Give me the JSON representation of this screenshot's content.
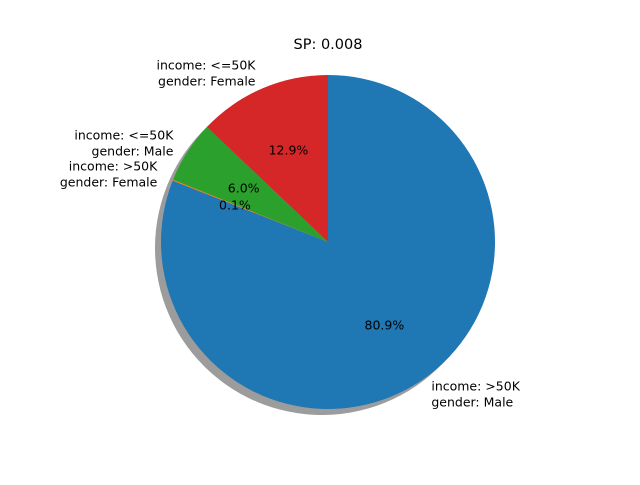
{
  "chart_data": {
    "type": "pie",
    "title": "SP: 0.008",
    "start_angle_deg": 90,
    "shadow": true,
    "slices": [
      {
        "label_lines": [
          "income: <=50K",
          "gender: Female"
        ],
        "value": 12.9,
        "pct_label": "12.9%",
        "color": "#d62728"
      },
      {
        "label_lines": [
          "income: <=50K",
          "gender: Male"
        ],
        "value": 6.0,
        "pct_label": "6.0%",
        "color": "#2ca02c"
      },
      {
        "label_lines": [
          "income: >50K",
          "gender: Female"
        ],
        "value": 0.1,
        "pct_label": "0.1%",
        "color": "#ff7f0e"
      },
      {
        "label_lines": [
          "income: >50K",
          "gender: Male"
        ],
        "value": 80.9,
        "pct_label": "80.9%",
        "color": "#1f77b4"
      }
    ]
  }
}
